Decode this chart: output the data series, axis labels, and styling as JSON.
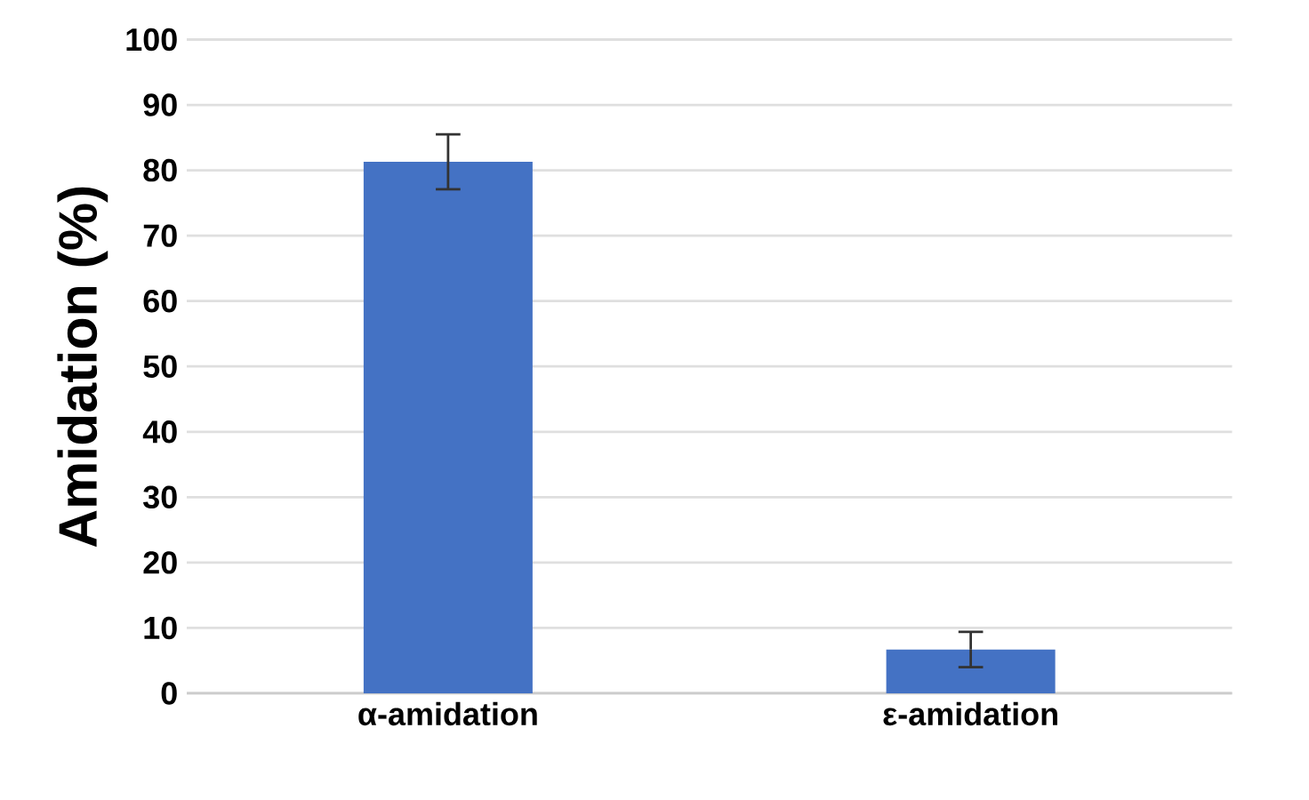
{
  "chart_data": {
    "type": "bar",
    "ylabel": "Amidation (%)",
    "categories": [
      "α-amidation",
      "ε-amidation"
    ],
    "values": [
      81.3,
      6.7
    ],
    "errors": [
      4.2,
      2.7
    ],
    "color": "#4472c4",
    "ylim": [
      0,
      100
    ],
    "yticks": [
      0,
      10,
      20,
      30,
      40,
      50,
      60,
      70,
      80,
      90,
      100
    ],
    "grid": "y"
  }
}
